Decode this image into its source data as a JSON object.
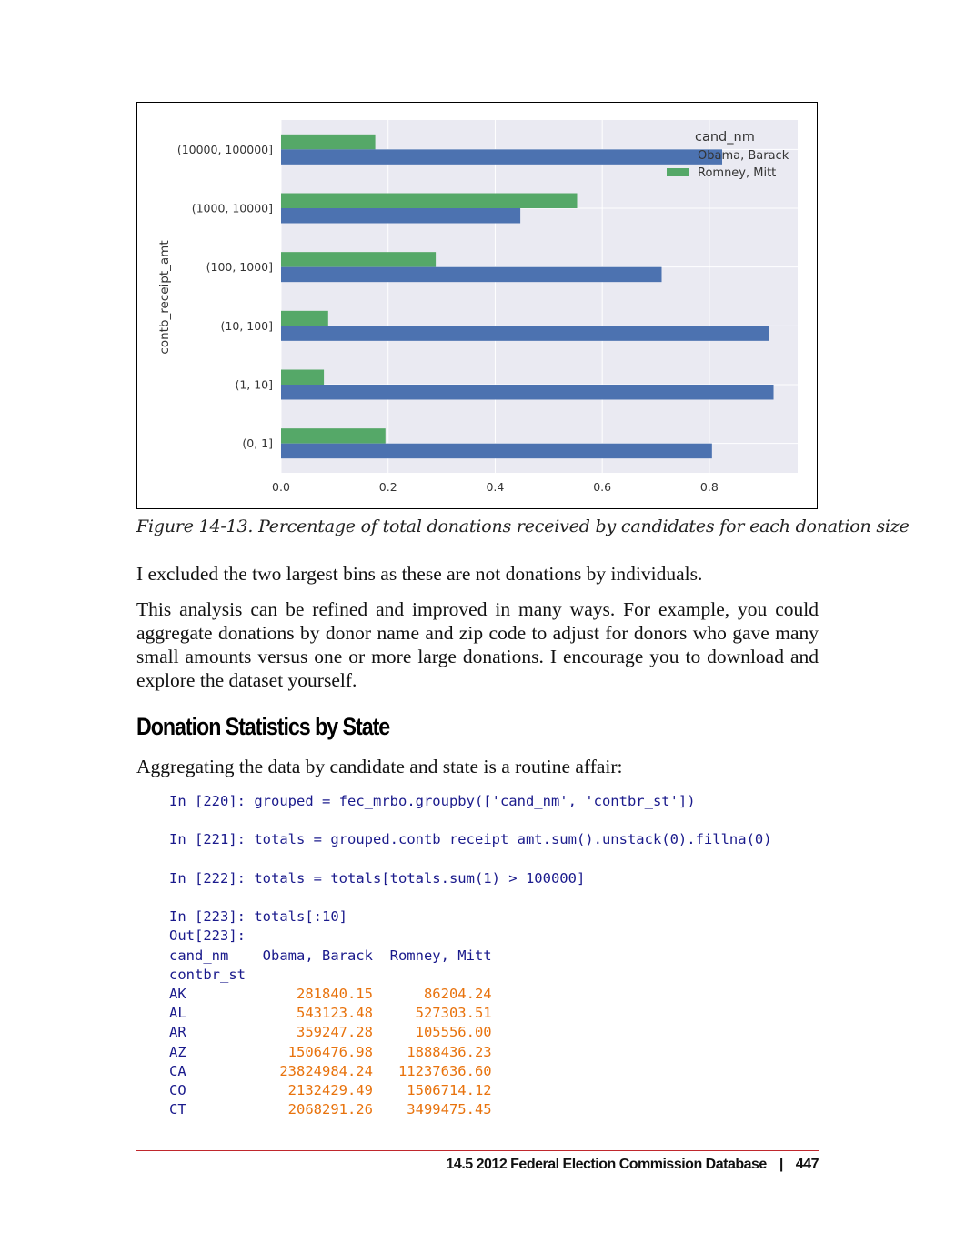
{
  "chart_data": {
    "type": "bar",
    "orientation": "horizontal",
    "ylabel": "contb_receipt_amt",
    "xlabel": "",
    "categories": [
      "(10000, 100000]",
      "(1000, 10000]",
      "(100, 1000]",
      "(10, 100]",
      "(1, 10]",
      "(0, 1]"
    ],
    "series": [
      {
        "name": "Obama, Barack",
        "color": "#4c72b0",
        "values": [
          0.824,
          0.447,
          0.711,
          0.912,
          0.92,
          0.805
        ]
      },
      {
        "name": "Romney, Mitt",
        "color": "#55a868",
        "values": [
          0.176,
          0.553,
          0.289,
          0.088,
          0.08,
          0.195
        ]
      }
    ],
    "xlim": [
      0,
      0.965
    ],
    "xticks": [
      "0.0",
      "0.2",
      "0.4",
      "0.6",
      "0.8"
    ],
    "legend_title": "cand_nm",
    "legend_position": "top-right",
    "grid": true,
    "background": "#eaeaf2"
  },
  "caption": "Figure 14-13. Percentage of total donations received by candidates for each donation size",
  "paragraphs": {
    "p1": "I excluded the two largest bins as these are not donations by individuals.",
    "p2": "This analysis can be refined and improved in many ways. For example, you could aggregate donations by donor name and zip code to adjust for donors who gave many small amounts versus one or more large donations. I encourage you to download and explore the dataset yourself.",
    "p3": "Aggregating the data by candidate and state is a routine affair:"
  },
  "section_heading": "Donation Statistics by State",
  "code": {
    "in220_prompt": "In [220]:",
    "in220_code": "grouped = fec_mrbo.groupby(['cand_nm', 'contbr_st'])",
    "in221_prompt": "In [221]:",
    "in221_code": "totals = grouped.contb_receipt_amt.sum().unstack(0).fillna(0)",
    "in222_prompt": "In [222]:",
    "in222_code": "totals = totals[totals.sum(1) > 100000]",
    "in223_prompt": "In [223]:",
    "in223_code": "totals[:10]",
    "out223_prompt": "Out[223]:",
    "table_header_index": "cand_nm",
    "table_columns": [
      "Obama, Barack",
      "Romney, Mitt"
    ],
    "table_index_name": "contbr_st",
    "table_rows": [
      {
        "state": "AK",
        "obama": "281840.15",
        "romney": "86204.24"
      },
      {
        "state": "AL",
        "obama": "543123.48",
        "romney": "527303.51"
      },
      {
        "state": "AR",
        "obama": "359247.28",
        "romney": "105556.00"
      },
      {
        "state": "AZ",
        "obama": "1506476.98",
        "romney": "1888436.23"
      },
      {
        "state": "CA",
        "obama": "23824984.24",
        "romney": "11237636.60"
      },
      {
        "state": "CO",
        "obama": "2132429.49",
        "romney": "1506714.12"
      },
      {
        "state": "CT",
        "obama": "2068291.26",
        "romney": "3499475.45"
      }
    ]
  },
  "footer": {
    "section": "14.5 2012 Federal Election Commission Database",
    "separator": "|",
    "page_number": "447"
  }
}
